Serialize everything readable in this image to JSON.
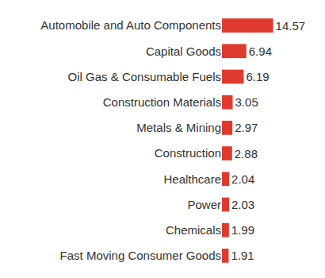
{
  "chart_data": {
    "type": "bar",
    "orientation": "horizontal",
    "categories": [
      "Automobile and Auto Components",
      "Capital Goods",
      "Oil Gas & Consumable Fuels",
      "Construction Materials",
      "Metals & Mining",
      "Construction",
      "Healthcare",
      "Power",
      "Chemicals",
      "Fast Moving Consumer Goods"
    ],
    "values": [
      14.57,
      6.94,
      6.19,
      3.05,
      2.97,
      2.88,
      2.04,
      2.03,
      1.99,
      1.91
    ],
    "color": "#e03a2f",
    "data_labels": true,
    "grid": false,
    "tick_labels": "y"
  }
}
